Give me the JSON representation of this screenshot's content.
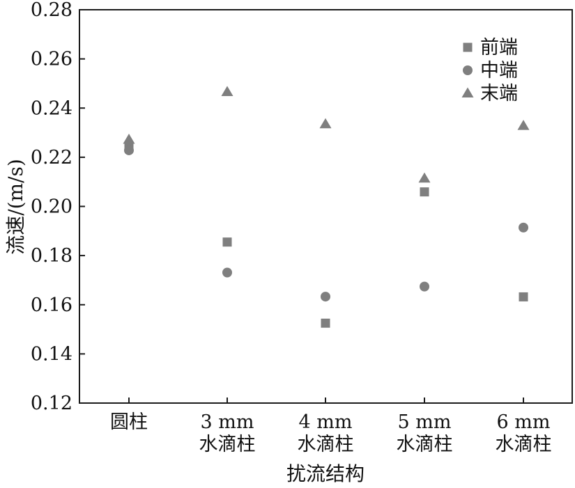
{
  "chart_data": {
    "type": "scatter",
    "title": "",
    "xlabel": "扰流结构",
    "ylabel": "流速/(m/s)",
    "ylim": [
      0.12,
      0.28
    ],
    "yticks": [
      "0.12",
      "0.14",
      "0.16",
      "0.18",
      "0.20",
      "0.22",
      "0.24",
      "0.26",
      "0.28"
    ],
    "categories": [
      {
        "line1": "圆柱",
        "line2": ""
      },
      {
        "line1": "3 mm",
        "line2": "水滴柱"
      },
      {
        "line1": "4 mm",
        "line2": "水滴柱"
      },
      {
        "line1": "5 mm",
        "line2": "水滴柱"
      },
      {
        "line1": "6 mm",
        "line2": "水滴柱"
      }
    ],
    "series": [
      {
        "name": "前端",
        "marker": "square",
        "values": [
          0.2245,
          0.1855,
          0.1525,
          0.2059,
          0.1632
        ]
      },
      {
        "name": "中端",
        "marker": "circle",
        "values": [
          0.2228,
          0.1731,
          0.1633,
          0.1674,
          0.1914
        ]
      },
      {
        "name": "末端",
        "marker": "triangle",
        "values": [
          0.2272,
          0.2466,
          0.2335,
          0.2114,
          0.2328
        ]
      }
    ],
    "marker_color": "#7f7f7f",
    "grid": false,
    "legend_position": "top-right"
  }
}
